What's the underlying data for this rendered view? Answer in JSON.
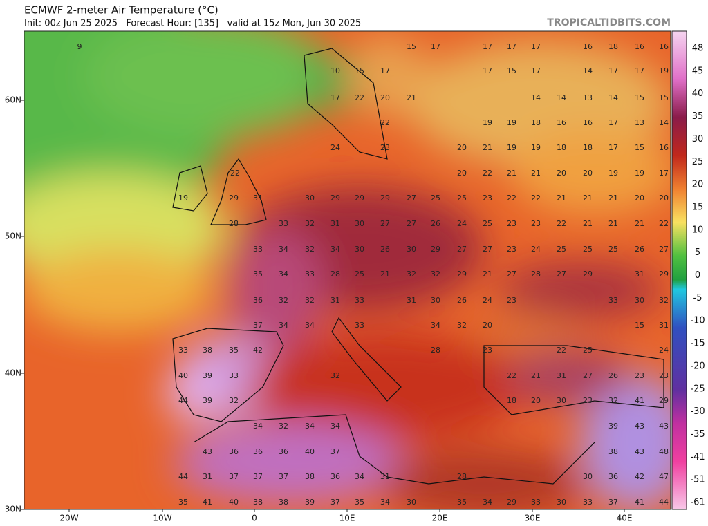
{
  "header": {
    "title": "ECMWF 2-meter Air Temperature (°C)",
    "subtitle": "Init: 00z Jun 25 2025   Forecast Hour: [135]   valid at 15z Mon, Jun 30 2025",
    "brand": "TROPICALTIDBITS.COM"
  },
  "map": {
    "lat_labels": [
      "60N",
      "50N",
      "40N",
      "30N"
    ],
    "lon_labels": [
      "20W",
      "10W",
      "0",
      "10E",
      "20E",
      "30E",
      "40E"
    ],
    "colorbar_labels": [
      "48",
      "45",
      "40",
      "35",
      "30",
      "25",
      "20",
      "15",
      "10",
      "5",
      "0",
      "-5",
      "-10",
      "-15",
      "-20",
      "-25",
      "-30",
      "-35",
      "-41",
      "-51",
      "-61"
    ],
    "temperature_labels": [
      [
        9,
        15,
        17,
        17,
        17,
        17,
        16,
        18,
        16,
        16
      ],
      [
        10,
        15,
        17,
        17,
        15,
        17,
        14,
        17,
        17,
        19
      ],
      [
        17,
        22,
        20,
        21,
        14,
        14,
        13,
        14,
        15,
        15
      ],
      [
        22,
        19,
        19,
        18,
        16,
        16,
        17,
        13,
        14
      ],
      [
        24,
        23,
        20,
        21,
        19,
        19,
        18,
        18,
        17,
        15,
        16
      ],
      [
        22,
        20,
        22,
        21,
        21,
        20,
        20,
        19,
        19,
        17
      ],
      [
        19,
        29,
        31,
        30,
        29,
        29,
        29,
        27,
        25,
        25,
        23,
        22,
        22,
        21,
        21,
        21,
        20,
        20
      ],
      [
        28,
        33,
        32,
        31,
        30,
        27,
        27,
        26,
        24,
        25,
        23,
        23,
        22,
        21,
        21,
        21,
        22
      ],
      [
        33,
        34,
        32,
        34,
        30,
        26,
        30,
        29,
        27,
        27,
        23,
        24,
        25,
        25,
        25,
        26,
        27
      ],
      [
        35,
        34,
        33,
        28,
        25,
        21,
        32,
        32,
        29,
        21,
        27,
        28,
        27,
        29,
        31,
        29
      ],
      [
        36,
        32,
        32,
        31,
        33,
        31,
        30,
        26,
        24,
        23,
        33,
        30,
        32
      ],
      [
        37,
        34,
        34,
        33,
        34,
        32,
        20,
        15,
        31
      ],
      [
        33,
        38,
        35,
        42,
        28,
        23,
        22,
        25,
        24
      ],
      [
        40,
        39,
        33,
        32,
        22,
        21,
        31,
        27,
        26,
        23,
        23
      ],
      [
        44,
        39,
        32,
        18,
        20,
        30,
        23,
        32,
        41,
        29
      ],
      [
        34,
        32,
        34,
        34,
        39,
        43,
        43
      ],
      [
        43,
        36,
        36,
        36,
        40,
        37,
        38,
        43,
        48
      ],
      [
        44,
        31,
        37,
        37,
        37,
        38,
        36,
        34,
        31,
        28,
        30,
        36,
        42,
        47
      ],
      [
        35,
        41,
        40,
        38,
        38,
        39,
        37,
        35,
        34,
        30,
        35,
        34,
        29,
        33,
        30,
        33,
        37,
        41,
        44
      ]
    ]
  }
}
